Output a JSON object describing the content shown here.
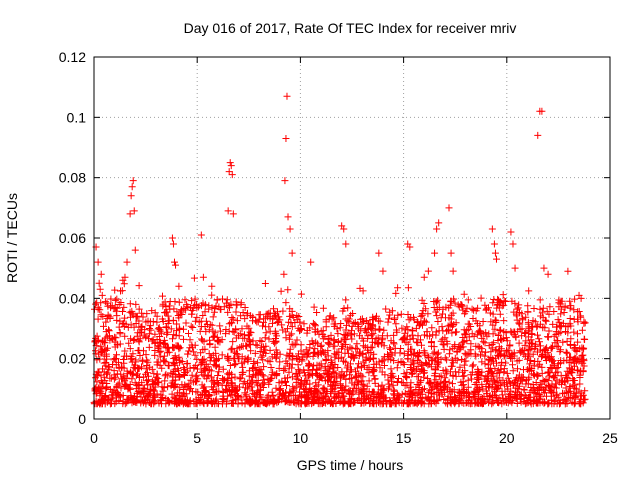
{
  "chart_data": {
    "type": "scatter",
    "title": "Day 016 of 2017, Rate Of TEC Index for receiver mriv",
    "xlabel": "GPS time / hours",
    "ylabel": "ROTI / TECUs",
    "xlim": [
      0,
      25
    ],
    "ylim": [
      0,
      0.12
    ],
    "xticks": [
      0,
      5,
      10,
      15,
      20,
      25
    ],
    "xtick_labels": [
      "0",
      "5",
      "10",
      "15",
      "20",
      "25"
    ],
    "yticks": [
      0,
      0.02,
      0.04,
      0.06,
      0.08,
      0.1,
      0.12
    ],
    "ytick_labels": [
      "0",
      "0.02",
      "0.04",
      "0.06",
      "0.08",
      "0.1",
      "0.12"
    ],
    "grid": true,
    "marker": "+",
    "series_color": "#ff0000",
    "data_x_range": [
      0,
      23.8
    ],
    "series": [
      {
        "name": "ROTI",
        "x": [
          0.1,
          0.2,
          0.25,
          0.3,
          0.35,
          0.4,
          1.4,
          1.5,
          1.6,
          1.75,
          1.8,
          1.85,
          1.9,
          1.95,
          2.0,
          3.8,
          3.85,
          3.9,
          3.95,
          5.2,
          5.3,
          6.5,
          6.55,
          6.6,
          6.65,
          6.7,
          6.75,
          9.2,
          9.25,
          9.3,
          9.35,
          9.4,
          9.5,
          9.6,
          10.5,
          12.0,
          12.1,
          12.2,
          13.8,
          14.0,
          15.2,
          15.3,
          16.0,
          16.2,
          16.5,
          16.6,
          16.7,
          17.2,
          17.3,
          17.4,
          19.3,
          19.4,
          19.45,
          19.5,
          20.2,
          20.3,
          20.4,
          21.5,
          21.6,
          21.7,
          21.8,
          22.0,
          23.5,
          23.6
        ],
        "y": [
          0.057,
          0.052,
          0.045,
          0.043,
          0.048,
          0.041,
          0.046,
          0.047,
          0.052,
          0.068,
          0.074,
          0.077,
          0.079,
          0.069,
          0.056,
          0.06,
          0.058,
          0.052,
          0.051,
          0.061,
          0.047,
          0.069,
          0.082,
          0.085,
          0.084,
          0.081,
          0.068,
          0.048,
          0.079,
          0.093,
          0.107,
          0.067,
          0.063,
          0.055,
          0.052,
          0.064,
          0.063,
          0.058,
          0.055,
          0.049,
          0.058,
          0.057,
          0.047,
          0.049,
          0.055,
          0.063,
          0.065,
          0.07,
          0.055,
          0.049,
          0.063,
          0.058,
          0.055,
          0.053,
          0.062,
          0.058,
          0.05,
          0.094,
          0.102,
          0.102,
          0.05,
          0.048,
          0.041,
          0.04
        ]
      }
    ]
  }
}
